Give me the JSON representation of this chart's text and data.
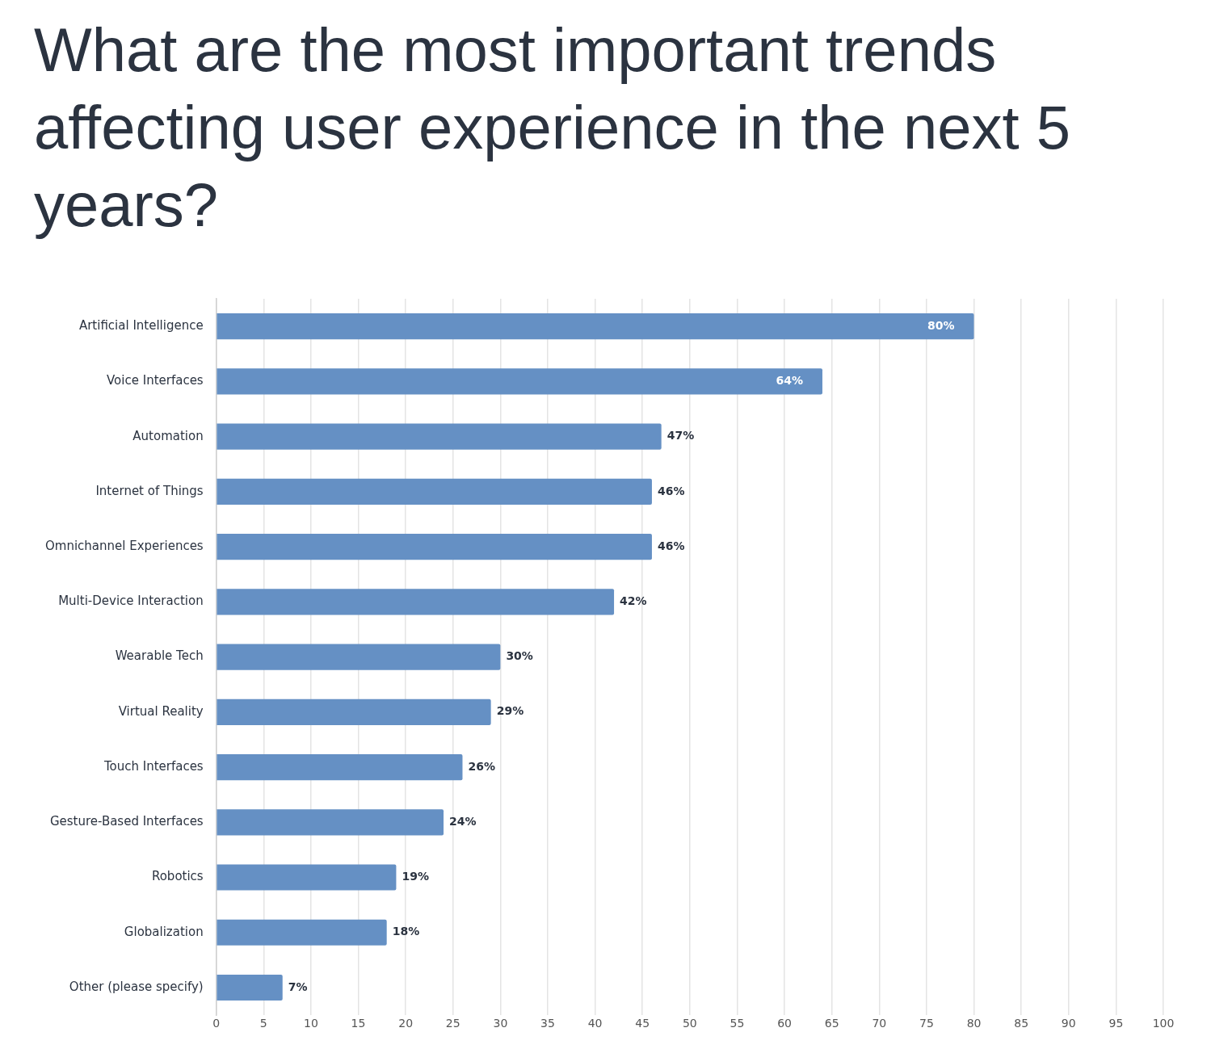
{
  "chart_data": {
    "type": "bar",
    "orientation": "horizontal",
    "title": "What are the most important trends affecting user experience in the next 5 years?",
    "categories": [
      "Artificial Intelligence",
      "Voice Interfaces",
      "Automation",
      "Internet of Things",
      "Omnichannel Experiences",
      "Multi-Device Interaction",
      "Wearable Tech",
      "Virtual Reality",
      "Touch Interfaces",
      "Gesture-Based Interfaces",
      "Robotics",
      "Globalization",
      "Other (please specify)"
    ],
    "values": [
      80,
      64,
      47,
      46,
      46,
      42,
      30,
      29,
      26,
      24,
      19,
      18,
      7
    ],
    "value_labels": [
      "80%",
      "64%",
      "47%",
      "46%",
      "46%",
      "42%",
      "30%",
      "29%",
      "26%",
      "24%",
      "19%",
      "18%",
      "7%"
    ],
    "color": "#6590c4",
    "xlim": [
      0,
      100
    ],
    "xticks": [
      0,
      5,
      10,
      15,
      20,
      25,
      30,
      35,
      40,
      45,
      50,
      55,
      60,
      65,
      70,
      75,
      80,
      85,
      90,
      95,
      100
    ],
    "grid": "x",
    "legend": false
  }
}
